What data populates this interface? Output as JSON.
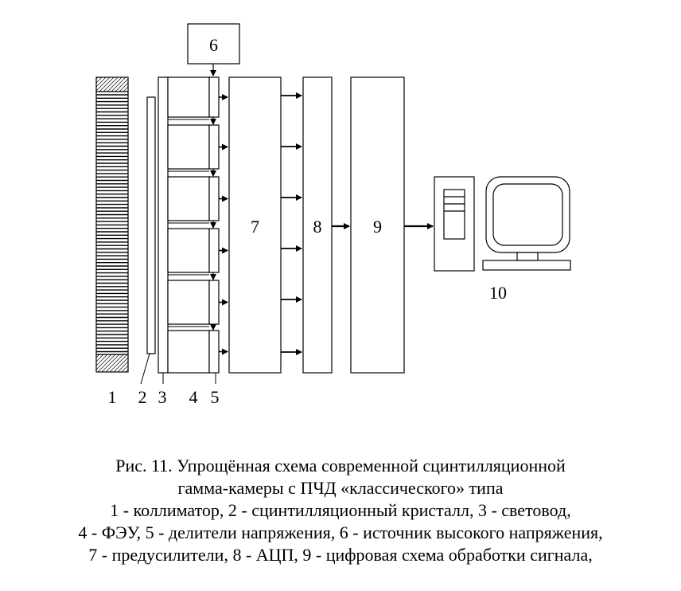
{
  "labels": {
    "n1": "1",
    "n2": "2",
    "n3": "3",
    "n4": "4",
    "n5": "5",
    "n6": "6",
    "n7": "7",
    "n8": "8",
    "n9": "9",
    "n10": "10"
  },
  "caption": {
    "line1": "Рис. 11. Упрощённая схема современной сцинтилляционной",
    "line2": "гамма-камеры с ПЧД «классического» типа",
    "line3": "1 - коллиматор, 2 - сцинтилляционный кристалл, 3 - световод,",
    "line4": "4 - ФЭУ, 5 - делители напряжения, 6 - источник высокого напряжения,",
    "line5": "7 - предусилители, 8 - АЦП, 9 - цифровая схема обработки сигнала,"
  }
}
